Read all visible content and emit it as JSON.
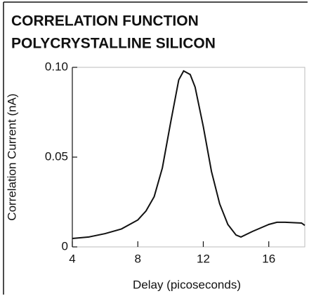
{
  "chart_data": {
    "type": "line",
    "title_lines": [
      "CORRELATION FUNCTION",
      "POLYCRYSTALLINE SILICON"
    ],
    "x_label": "Delay (picoseconds)",
    "y_label": "Correlation Current (nA)",
    "x": [
      4,
      5,
      6,
      7,
      8,
      8.5,
      9,
      9.5,
      10,
      10.5,
      10.8,
      11.2,
      11.5,
      12,
      12.5,
      13,
      13.5,
      14,
      14.3,
      15,
      16,
      16.5,
      17,
      18,
      18.2
    ],
    "series": [
      {
        "color": "#111111",
        "values": [
          0.0047,
          0.0055,
          0.0074,
          0.01,
          0.015,
          0.02,
          0.028,
          0.044,
          0.069,
          0.093,
          0.098,
          0.096,
          0.089,
          0.067,
          0.042,
          0.024,
          0.0125,
          0.0066,
          0.0055,
          0.0086,
          0.0125,
          0.0137,
          0.0137,
          0.0133,
          0.012
        ]
      }
    ],
    "xlim": [
      4,
      18.2
    ],
    "ylim": [
      0,
      0.1
    ],
    "xticks": [
      4,
      8,
      12,
      16
    ],
    "yticks": [
      0,
      0.05,
      {
        "value": 0.1,
        "label": "0.10"
      }
    ]
  }
}
